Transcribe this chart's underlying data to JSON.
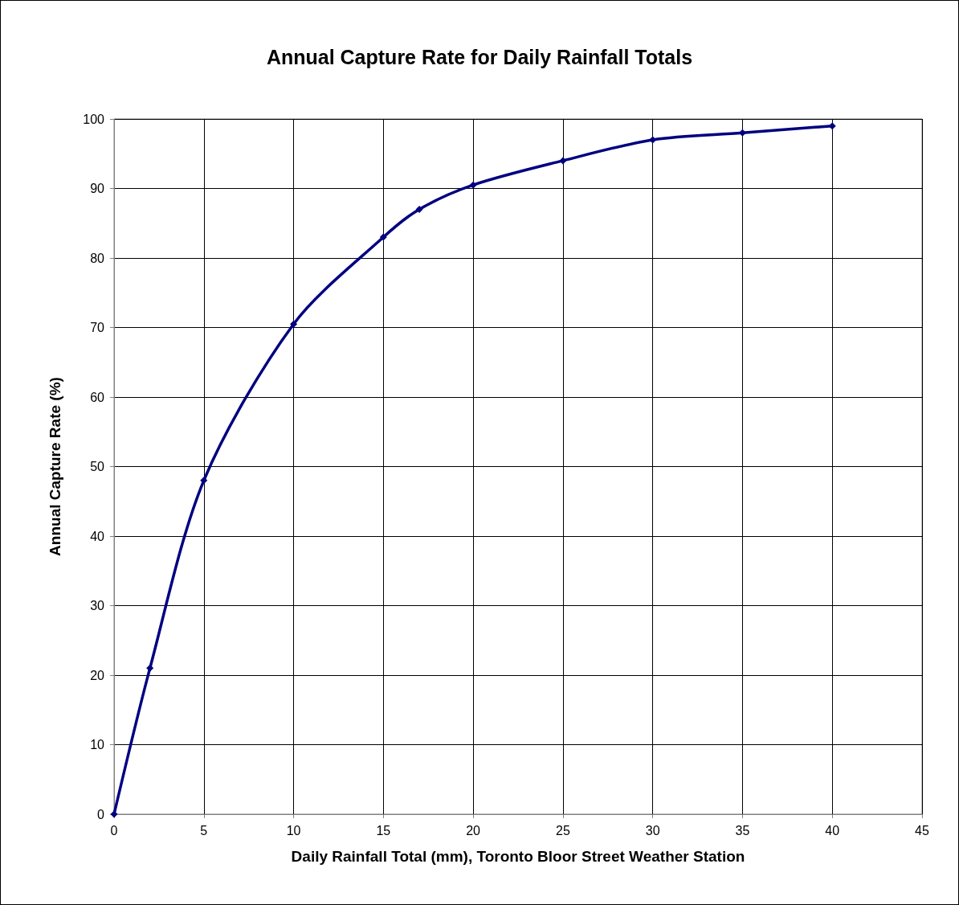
{
  "chart_data": {
    "type": "line",
    "title": "Annual Capture Rate for Daily Rainfall Totals",
    "xlabel": "Daily Rainfall Total (mm), Toronto Bloor Street Weather Station",
    "ylabel": "Annual Capture Rate (%)",
    "x": [
      0,
      2,
      5,
      10,
      15,
      17,
      20,
      25,
      30,
      35,
      40
    ],
    "series": [
      {
        "color": "#000080",
        "values": [
          0,
          21,
          48,
          70.5,
          83,
          87,
          90.5,
          94,
          97,
          98,
          99
        ]
      }
    ],
    "xlim": [
      0,
      45
    ],
    "xticks": [
      0,
      5,
      10,
      15,
      20,
      25,
      30,
      35,
      40,
      45
    ],
    "ylim": [
      0,
      100
    ],
    "yticks": [
      0,
      10,
      20,
      30,
      40,
      50,
      60,
      70,
      80,
      90,
      100
    ],
    "grid": true,
    "marker": "diamond",
    "line_style": "solid"
  }
}
